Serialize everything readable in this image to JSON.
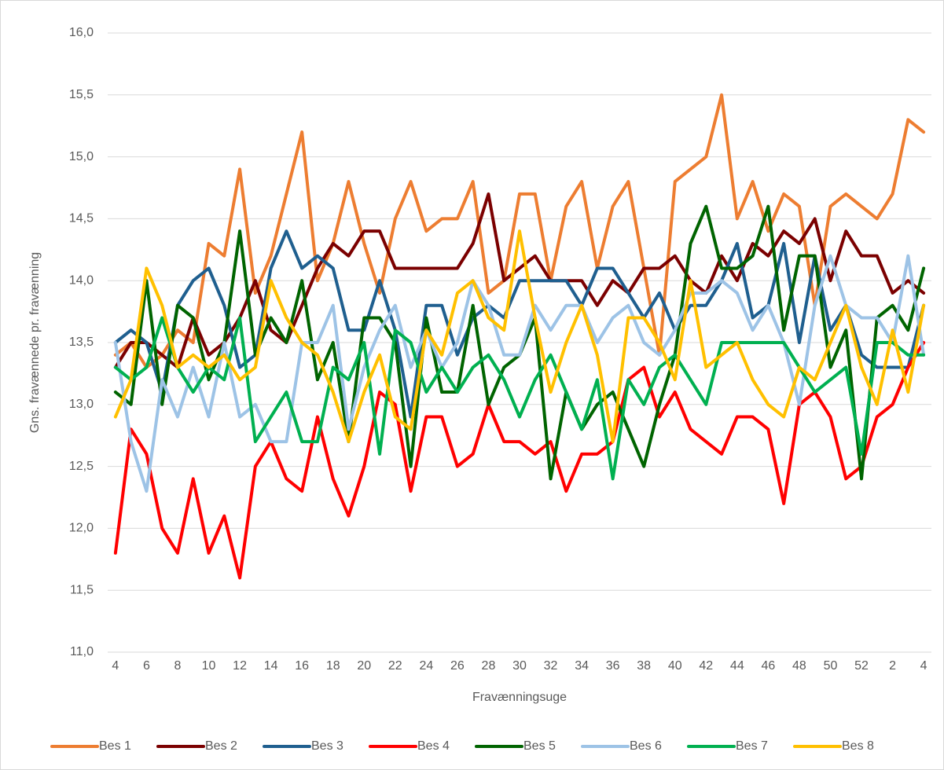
{
  "chart_data": {
    "type": "line",
    "y_label": "Gns. fravænnede pr. fravænning",
    "x_label": "Fravænningsuge",
    "categories": [
      "4",
      null,
      "6",
      null,
      "8",
      null,
      "10",
      null,
      "12",
      null,
      "14",
      null,
      "16",
      null,
      "18",
      null,
      "20",
      null,
      "22",
      null,
      "24",
      null,
      "26",
      null,
      "28",
      null,
      "30",
      null,
      "32",
      null,
      "34",
      null,
      "36",
      null,
      "38",
      null,
      "40",
      null,
      "42",
      null,
      "44",
      null,
      "46",
      null,
      "48",
      null,
      "50",
      null,
      "52",
      null,
      "2",
      null,
      "4"
    ],
    "ylim": [
      11,
      16
    ],
    "yticks": [
      {
        "value": 11,
        "label": "11,0"
      },
      {
        "value": 11.5,
        "label": "11,5"
      },
      {
        "value": 12,
        "label": "12,0"
      },
      {
        "value": 12.5,
        "label": "12,5"
      },
      {
        "value": 13,
        "label": "13,0"
      },
      {
        "value": 13.5,
        "label": "13,5"
      },
      {
        "value": 14,
        "label": "14,0"
      },
      {
        "value": 14.5,
        "label": "14,5"
      },
      {
        "value": 15,
        "label": "15,0"
      },
      {
        "value": 15.5,
        "label": "15,5"
      },
      {
        "value": 16,
        "label": "16,0"
      }
    ],
    "grid": true,
    "legend": "bottom",
    "series": [
      {
        "name": "Bes 1",
        "color": "#ed7d31",
        "values": [
          13.4,
          13.5,
          13.3,
          13.4,
          13.6,
          13.5,
          14.3,
          14.2,
          14.9,
          13.9,
          14.2,
          14.7,
          15.2,
          14.0,
          14.3,
          14.8,
          14.3,
          13.9,
          14.5,
          14.8,
          14.4,
          14.5,
          14.5,
          14.8,
          13.9,
          14.0,
          14.7,
          14.7,
          14.0,
          14.6,
          14.8,
          14.1,
          14.6,
          14.8,
          14.1,
          13.4,
          14.8,
          14.9,
          15.0,
          15.5,
          14.5,
          14.8,
          14.4,
          14.7,
          14.6,
          13.8,
          14.6,
          14.7,
          14.6,
          14.5,
          14.7,
          15.3,
          15.2
        ]
      },
      {
        "name": "Bes 2",
        "color": "#7b0000",
        "values": [
          13.3,
          13.5,
          13.5,
          13.4,
          13.3,
          13.7,
          13.4,
          13.5,
          13.7,
          14.0,
          13.6,
          13.5,
          13.8,
          14.1,
          14.3,
          14.2,
          14.4,
          14.4,
          14.1,
          14.1,
          14.1,
          14.1,
          14.1,
          14.3,
          14.7,
          14.0,
          14.1,
          14.2,
          14.0,
          14.0,
          14.0,
          13.8,
          14.0,
          13.9,
          14.1,
          14.1,
          14.2,
          14.0,
          13.9,
          14.2,
          14.0,
          14.3,
          14.2,
          14.4,
          14.3,
          14.5,
          14.0,
          14.4,
          14.2,
          14.2,
          13.9,
          14.0,
          13.9
        ]
      },
      {
        "name": "Bes 3",
        "color": "#1f5f8f",
        "values": [
          13.5,
          13.6,
          13.5,
          13.1,
          13.8,
          14.0,
          14.1,
          13.8,
          13.3,
          13.4,
          14.1,
          14.4,
          14.1,
          14.2,
          14.1,
          13.6,
          13.6,
          14.0,
          13.6,
          12.9,
          13.8,
          13.8,
          13.4,
          13.7,
          13.8,
          13.7,
          14.0,
          14.0,
          14.0,
          14.0,
          13.8,
          14.1,
          14.1,
          13.9,
          13.7,
          13.9,
          13.6,
          13.8,
          13.8,
          14.0,
          14.3,
          13.7,
          13.8,
          14.3,
          13.5,
          14.2,
          13.6,
          13.8,
          13.4,
          13.3,
          13.3,
          13.3,
          13.8
        ]
      },
      {
        "name": "Bes 4",
        "color": "#ff0000",
        "values": [
          11.8,
          12.8,
          12.6,
          12.0,
          11.8,
          12.4,
          11.8,
          12.1,
          11.6,
          12.5,
          12.7,
          12.4,
          12.3,
          12.9,
          12.4,
          12.1,
          12.5,
          13.1,
          13.0,
          12.3,
          12.9,
          12.9,
          12.5,
          12.6,
          13.0,
          12.7,
          12.7,
          12.6,
          12.7,
          12.3,
          12.6,
          12.6,
          12.7,
          13.2,
          13.3,
          12.9,
          13.1,
          12.8,
          12.7,
          12.6,
          12.9,
          12.9,
          12.8,
          12.2,
          13.0,
          13.1,
          12.9,
          12.4,
          12.5,
          12.9,
          13.0,
          13.3,
          13.5
        ]
      },
      {
        "name": "Bes 5",
        "color": "#006400",
        "values": [
          13.1,
          13.0,
          14.0,
          13.0,
          13.8,
          13.7,
          13.2,
          13.5,
          14.4,
          13.4,
          13.7,
          13.5,
          14.0,
          13.2,
          13.5,
          12.7,
          13.7,
          13.7,
          13.5,
          12.5,
          13.7,
          13.1,
          13.1,
          13.8,
          13.0,
          13.3,
          13.4,
          13.7,
          12.4,
          13.1,
          12.8,
          13.0,
          13.1,
          12.8,
          12.5,
          13.0,
          13.4,
          14.3,
          14.6,
          14.1,
          14.1,
          14.2,
          14.6,
          13.6,
          14.2,
          14.2,
          13.3,
          13.6,
          12.4,
          13.7,
          13.8,
          13.6,
          14.1
        ]
      },
      {
        "name": "Bes 6",
        "color": "#9dc3e6",
        "values": [
          13.5,
          12.7,
          12.3,
          13.2,
          12.9,
          13.3,
          12.9,
          13.5,
          12.9,
          13.0,
          12.7,
          12.7,
          13.5,
          13.5,
          13.8,
          12.8,
          13.3,
          13.6,
          13.8,
          13.3,
          13.6,
          13.3,
          13.5,
          14.0,
          13.8,
          13.4,
          13.4,
          13.8,
          13.6,
          13.8,
          13.8,
          13.5,
          13.7,
          13.8,
          13.5,
          13.4,
          13.6,
          13.9,
          13.9,
          14.0,
          13.9,
          13.6,
          13.8,
          13.5,
          13.0,
          13.8,
          14.2,
          13.8,
          13.7,
          13.7,
          13.5,
          14.2,
          13.4
        ]
      },
      {
        "name": "Bes 7",
        "color": "#00b050",
        "values": [
          13.3,
          13.2,
          13.3,
          13.7,
          13.3,
          13.1,
          13.3,
          13.2,
          13.7,
          12.7,
          12.9,
          13.1,
          12.7,
          12.7,
          13.3,
          13.2,
          13.5,
          12.6,
          13.6,
          13.5,
          13.1,
          13.3,
          13.1,
          13.3,
          13.4,
          13.2,
          12.9,
          13.2,
          13.4,
          13.1,
          12.8,
          13.2,
          12.4,
          13.2,
          13.0,
          13.3,
          13.4,
          13.2,
          13.0,
          13.5,
          13.5,
          13.5,
          13.5,
          13.5,
          13.3,
          13.1,
          13.2,
          13.3,
          12.6,
          13.5,
          13.5,
          13.4,
          13.4
        ]
      },
      {
        "name": "Bes 8",
        "color": "#ffc000",
        "values": [
          12.9,
          13.2,
          14.1,
          13.8,
          13.3,
          13.4,
          13.3,
          13.4,
          13.2,
          13.3,
          14.0,
          13.7,
          13.5,
          13.4,
          13.1,
          12.7,
          13.1,
          13.4,
          12.9,
          12.8,
          13.6,
          13.4,
          13.9,
          14.0,
          13.7,
          13.6,
          14.4,
          13.7,
          13.1,
          13.5,
          13.8,
          13.4,
          12.7,
          13.7,
          13.7,
          13.5,
          13.2,
          14.0,
          13.3,
          13.4,
          13.5,
          13.2,
          13.0,
          12.9,
          13.3,
          13.2,
          13.5,
          13.8,
          13.3,
          13.0,
          13.6,
          13.1,
          13.8
        ]
      }
    ]
  }
}
